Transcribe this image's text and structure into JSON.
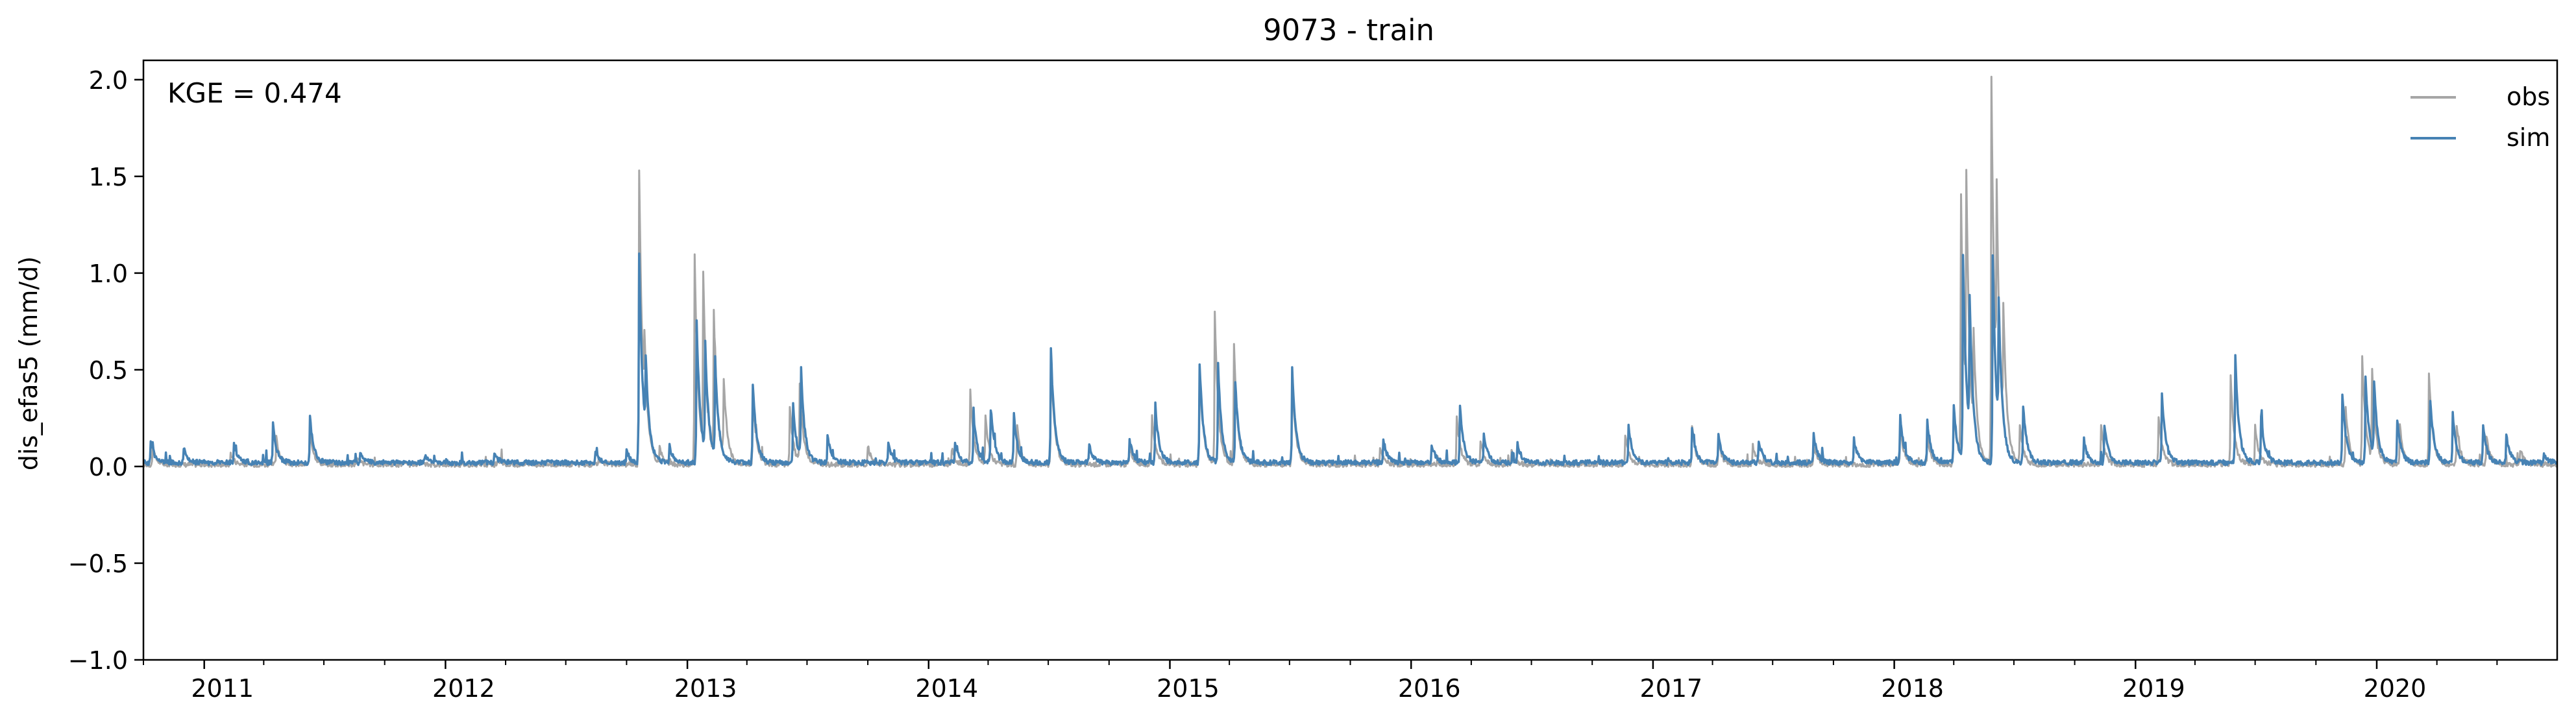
{
  "chart_data": {
    "type": "line",
    "title": "9073 - train",
    "ylabel": "dis_efas5 (mm/d)",
    "xlabel": "",
    "annotation": "KGE = 0.474",
    "xlim": [
      "2010-10-01",
      "2020-09-30"
    ],
    "ylim": [
      -1.0,
      2.1
    ],
    "yticks": [
      -1.0,
      -0.5,
      0.0,
      0.5,
      1.0,
      1.5,
      2.0
    ],
    "ytick_labels": [
      "−1.0",
      "−0.5",
      "0.0",
      "0.5",
      "1.0",
      "1.5",
      "2.0"
    ],
    "xticks": [
      "2011-01-01",
      "2012-01-01",
      "2013-01-01",
      "2014-01-01",
      "2015-01-01",
      "2016-01-01",
      "2017-01-01",
      "2018-01-01",
      "2019-01-01",
      "2020-01-01"
    ],
    "xtick_labels": [
      "2011",
      "2012",
      "2013",
      "2014",
      "2015",
      "2016",
      "2017",
      "2018",
      "2019",
      "2020"
    ],
    "grid": false,
    "legend_position": "top-right",
    "colors": {
      "obs": "#a6a6a6",
      "sim": "#4682b4"
    },
    "baseline": {
      "obs": 0.01,
      "sim": 0.02
    },
    "series": [
      {
        "name": "obs",
        "peaks": [
          [
            "2010-10-15",
            0.08
          ],
          [
            "2011-02-10",
            0.06
          ],
          [
            "2011-04-20",
            0.14
          ],
          [
            "2011-06-10",
            0.18
          ],
          [
            "2011-08-20",
            0.04
          ],
          [
            "2012-03-20",
            0.03
          ],
          [
            "2012-08-20",
            0.03
          ],
          [
            "2012-10-20",
            1.53
          ],
          [
            "2012-10-28",
            0.35
          ],
          [
            "2012-11-20",
            0.08
          ],
          [
            "2013-01-12",
            1.08
          ],
          [
            "2013-01-25",
            0.9
          ],
          [
            "2013-02-10",
            0.75
          ],
          [
            "2013-02-25",
            0.4
          ],
          [
            "2013-04-10",
            0.35
          ],
          [
            "2013-06-05",
            0.3
          ],
          [
            "2013-06-20",
            0.4
          ],
          [
            "2013-10-01",
            0.1
          ],
          [
            "2014-02-05",
            0.08
          ],
          [
            "2014-03-05",
            0.38
          ],
          [
            "2014-03-28",
            0.25
          ],
          [
            "2014-05-15",
            0.2
          ],
          [
            "2014-07-05",
            0.55
          ],
          [
            "2014-11-01",
            0.1
          ],
          [
            "2014-12-05",
            0.25
          ],
          [
            "2015-02-15",
            0.5
          ],
          [
            "2015-03-10",
            0.78
          ],
          [
            "2015-04-08",
            0.62
          ],
          [
            "2015-07-05",
            0.45
          ],
          [
            "2015-11-15",
            0.08
          ],
          [
            "2016-03-10",
            0.25
          ],
          [
            "2016-04-15",
            0.12
          ],
          [
            "2016-06-01",
            0.08
          ],
          [
            "2016-11-20",
            0.15
          ],
          [
            "2017-03-01",
            0.2
          ],
          [
            "2017-04-10",
            0.12
          ],
          [
            "2017-06-01",
            0.1
          ],
          [
            "2017-09-01",
            0.1
          ],
          [
            "2018-01-10",
            0.2
          ],
          [
            "2018-02-20",
            0.15
          ],
          [
            "2018-04-01",
            0.3
          ],
          [
            "2018-04-12",
            1.35
          ],
          [
            "2018-04-20",
            1.2
          ],
          [
            "2018-05-01",
            0.5
          ],
          [
            "2018-05-28",
            1.99
          ],
          [
            "2018-06-05",
            1.0
          ],
          [
            "2018-06-15",
            0.6
          ],
          [
            "2018-07-10",
            0.2
          ],
          [
            "2018-11-10",
            0.2
          ],
          [
            "2019-02-05",
            0.25
          ],
          [
            "2019-05-25",
            0.45
          ],
          [
            "2019-07-01",
            0.2
          ],
          [
            "2019-11-15",
            0.3
          ],
          [
            "2019-12-10",
            0.56
          ],
          [
            "2019-12-25",
            0.45
          ],
          [
            "2020-02-05",
            0.2
          ],
          [
            "2020-03-20",
            0.48
          ],
          [
            "2020-05-01",
            0.2
          ],
          [
            "2020-06-15",
            0.15
          ],
          [
            "2020-08-05",
            0.08
          ]
        ]
      },
      {
        "name": "sim",
        "peaks": [
          [
            "2010-10-12",
            0.12
          ],
          [
            "2010-12-01",
            0.08
          ],
          [
            "2011-02-15",
            0.1
          ],
          [
            "2011-04-15",
            0.2
          ],
          [
            "2011-06-10",
            0.24
          ],
          [
            "2011-08-25",
            0.06
          ],
          [
            "2011-12-01",
            0.04
          ],
          [
            "2012-03-15",
            0.05
          ],
          [
            "2012-08-15",
            0.06
          ],
          [
            "2012-10-01",
            0.06
          ],
          [
            "2012-10-20",
            1.08
          ],
          [
            "2012-10-30",
            0.38
          ],
          [
            "2012-12-05",
            0.08
          ],
          [
            "2013-01-15",
            0.73
          ],
          [
            "2013-01-28",
            0.55
          ],
          [
            "2013-02-12",
            0.5
          ],
          [
            "2013-04-10",
            0.41
          ],
          [
            "2013-06-10",
            0.3
          ],
          [
            "2013-06-22",
            0.45
          ],
          [
            "2013-08-01",
            0.15
          ],
          [
            "2013-11-01",
            0.1
          ],
          [
            "2014-02-10",
            0.1
          ],
          [
            "2014-03-10",
            0.25
          ],
          [
            "2014-04-05",
            0.28
          ],
          [
            "2014-05-10",
            0.25
          ],
          [
            "2014-07-05",
            0.6
          ],
          [
            "2014-09-01",
            0.1
          ],
          [
            "2014-11-01",
            0.12
          ],
          [
            "2014-12-10",
            0.3
          ],
          [
            "2015-02-15",
            0.52
          ],
          [
            "2015-03-15",
            0.5
          ],
          [
            "2015-04-10",
            0.42
          ],
          [
            "2015-07-05",
            0.5
          ],
          [
            "2015-11-20",
            0.12
          ],
          [
            "2016-02-01",
            0.1
          ],
          [
            "2016-03-15",
            0.3
          ],
          [
            "2016-04-20",
            0.15
          ],
          [
            "2016-06-10",
            0.1
          ],
          [
            "2016-11-25",
            0.2
          ],
          [
            "2017-03-01",
            0.18
          ],
          [
            "2017-04-10",
            0.15
          ],
          [
            "2017-06-10",
            0.12
          ],
          [
            "2017-09-01",
            0.15
          ],
          [
            "2017-11-01",
            0.12
          ],
          [
            "2018-01-10",
            0.25
          ],
          [
            "2018-02-20",
            0.22
          ],
          [
            "2018-04-01",
            0.3
          ],
          [
            "2018-04-15",
            1.06
          ],
          [
            "2018-04-25",
            0.7
          ],
          [
            "2018-05-30",
            1.06
          ],
          [
            "2018-06-08",
            0.65
          ],
          [
            "2018-07-15",
            0.3
          ],
          [
            "2018-10-15",
            0.12
          ],
          [
            "2018-11-15",
            0.2
          ],
          [
            "2019-02-10",
            0.35
          ],
          [
            "2019-06-01",
            0.55
          ],
          [
            "2019-07-10",
            0.25
          ],
          [
            "2019-11-10",
            0.36
          ],
          [
            "2019-12-15",
            0.45
          ],
          [
            "2019-12-28",
            0.38
          ],
          [
            "2020-02-01",
            0.22
          ],
          [
            "2020-03-22",
            0.33
          ],
          [
            "2020-04-25",
            0.25
          ],
          [
            "2020-06-10",
            0.2
          ],
          [
            "2020-07-15",
            0.15
          ],
          [
            "2020-09-10",
            0.04
          ]
        ]
      }
    ]
  }
}
